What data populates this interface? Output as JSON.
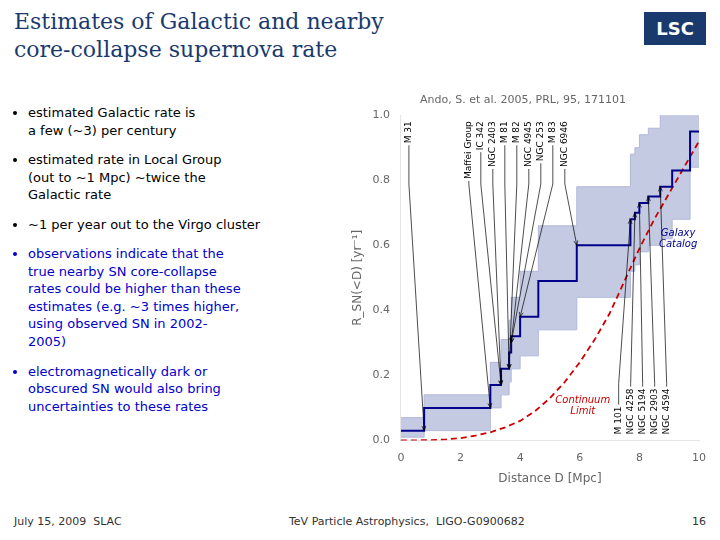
{
  "slide": {
    "title": [
      "Estimates of Galactic and nearby",
      "core-collapse supernova rate"
    ],
    "color": "#1a3a6e",
    "logo": "LSC",
    "bullets": [
      {
        "text": "estimated Galactic rate is\na few (~3) per century",
        "color": "#000000"
      },
      {
        "text": "estimated rate in Local Group\n(out to ~1 Mpc) ~twice the\nGalactic rate",
        "color": "#000000"
      },
      {
        "text": "~1 per year out to the Virgo cluster",
        "color": "#000000"
      },
      {
        "text": "observations indicate that the\ntrue nearby SN core-collapse\nrates could be higher than these\nestimates (e.g. ~3 times higher,\nusing observed SN in 2002-\n2005)",
        "color": "#0000cc"
      },
      {
        "text": "electromagnetically dark or\nobscured SN would also bring\nuncertainties to these rates",
        "color": "#0000cc"
      }
    ],
    "footer": [
      "July 15, 2009  SLAC",
      "TeV Particle Astrophysics,  LIGO-G0900682",
      "16"
    ]
  },
  "chart_data": {
    "type": "line",
    "title": "Ando, S. et al. 2005, PRL, 95, 171101",
    "xlabel": "Distance D [Mpc]",
    "ylabel": "R_SN(<D) [yr⁻¹]",
    "xlim": [
      0,
      10
    ],
    "ylim": [
      0,
      1.0
    ],
    "xticks": [
      0,
      2,
      4,
      6,
      8,
      10
    ],
    "yticks": [
      {
        "value": 0,
        "label": "0.0"
      },
      0.2,
      0.4,
      0.6,
      0.8,
      {
        "value": 1.0,
        "label": "1.0"
      }
    ],
    "grid": false,
    "series": [
      {
        "type": "area",
        "color": "#b0b8d8",
        "x": [
          0,
          0.78,
          0.78,
          3.0,
          3.0,
          3.36,
          3.36,
          3.63,
          3.63,
          3.7,
          3.7,
          4.0,
          4.0,
          4.61,
          4.61,
          5.9,
          5.9,
          7.7,
          7.7,
          7.85,
          7.85,
          8.0,
          8.0,
          8.3,
          8.3,
          8.7,
          8.7,
          9.1,
          9.1,
          9.7,
          9.7,
          10.0
        ],
        "values": [
          0.07,
          0.07,
          0.14,
          0.14,
          0.24,
          0.24,
          0.31,
          0.31,
          0.37,
          0.37,
          0.44,
          0.44,
          0.52,
          0.52,
          0.66,
          0.66,
          0.78,
          0.78,
          0.88,
          0.88,
          0.9,
          0.9,
          0.94,
          0.94,
          0.96,
          0.96,
          1.0,
          1.0,
          1.0,
          1.0,
          1.0,
          1.0
        ],
        "lower": [
          0.01,
          0.01,
          0.03,
          0.03,
          0.1,
          0.1,
          0.14,
          0.14,
          0.18,
          0.18,
          0.22,
          0.22,
          0.26,
          0.26,
          0.34,
          0.34,
          0.44,
          0.44,
          0.52,
          0.52,
          0.54,
          0.54,
          0.58,
          0.58,
          0.6,
          0.6,
          0.62,
          0.62,
          0.68,
          0.68,
          0.84,
          0.84
        ]
      },
      {
        "color": "#00008b",
        "x": [
          0,
          0.78,
          0.78,
          3.0,
          3.0,
          3.36,
          3.36,
          3.63,
          3.63,
          3.7,
          3.7,
          4.0,
          4.0,
          4.61,
          4.61,
          5.9,
          5.9,
          7.7,
          7.7,
          7.85,
          7.85,
          8.0,
          8.0,
          8.3,
          8.3,
          8.7,
          8.7,
          9.1,
          9.1,
          9.7,
          9.7,
          10.0
        ],
        "values": [
          0.03,
          0.03,
          0.1,
          0.1,
          0.17,
          0.17,
          0.22,
          0.22,
          0.27,
          0.27,
          0.32,
          0.32,
          0.38,
          0.38,
          0.49,
          0.49,
          0.6,
          0.6,
          0.68,
          0.68,
          0.7,
          0.7,
          0.73,
          0.73,
          0.75,
          0.75,
          0.78,
          0.78,
          0.83,
          0.83,
          0.95,
          0.95
        ]
      },
      {
        "color": "#cc0000",
        "line_style": "dashed",
        "x": [
          0,
          0.5,
          1.0,
          1.5,
          2.0,
          2.5,
          3.0,
          3.5,
          4.0,
          4.5,
          5.0,
          5.5,
          6.0,
          6.5,
          7.0,
          7.5,
          8.0,
          8.5,
          9.0,
          9.5,
          10.0
        ],
        "values": [
          0,
          0.0002,
          0.001,
          0.003,
          0.007,
          0.015,
          0.025,
          0.04,
          0.06,
          0.09,
          0.13,
          0.18,
          0.24,
          0.31,
          0.39,
          0.49,
          0.59,
          0.68,
          0.76,
          0.84,
          0.92
        ]
      }
    ],
    "labels": [
      {
        "text": "Galaxy\nCatalog",
        "x": 9.3,
        "y": 0.62,
        "color": "#00008b"
      },
      {
        "text": "Continuum\nLimit",
        "x": 6.1,
        "y": 0.105,
        "color": "#cc0000"
      }
    ],
    "annotations": [
      {
        "text": "M 31",
        "x": 0.78,
        "y": 0.03
      },
      {
        "text": "Maffei Group",
        "x": 3.0,
        "y": 0.1
      },
      {
        "text": "IC 342",
        "x": 3.36,
        "y": 0.17
      },
      {
        "text": "NGC 2403",
        "x": 3.36,
        "y": 0.17
      },
      {
        "text": "M 81",
        "x": 3.63,
        "y": 0.22
      },
      {
        "text": "M 82",
        "x": 3.63,
        "y": 0.22
      },
      {
        "text": "NGC 4945",
        "x": 3.7,
        "y": 0.3
      },
      {
        "text": "NGC 253",
        "x": 3.7,
        "y": 0.3
      },
      {
        "text": "M 83",
        "x": 4.0,
        "y": 0.38
      },
      {
        "text": "NGC 6946",
        "x": 5.9,
        "y": 0.6
      },
      {
        "text": "M 101",
        "x": 7.7,
        "y": 0.68
      },
      {
        "text": "NGC 4258",
        "x": 7.85,
        "y": 0.7
      },
      {
        "text": "NGC 5194",
        "x": 8.0,
        "y": 0.73
      },
      {
        "text": "NGC 2903",
        "x": 8.3,
        "y": 0.75
      },
      {
        "text": "NGC 4594",
        "x": 8.7,
        "y": 0.78
      }
    ]
  }
}
